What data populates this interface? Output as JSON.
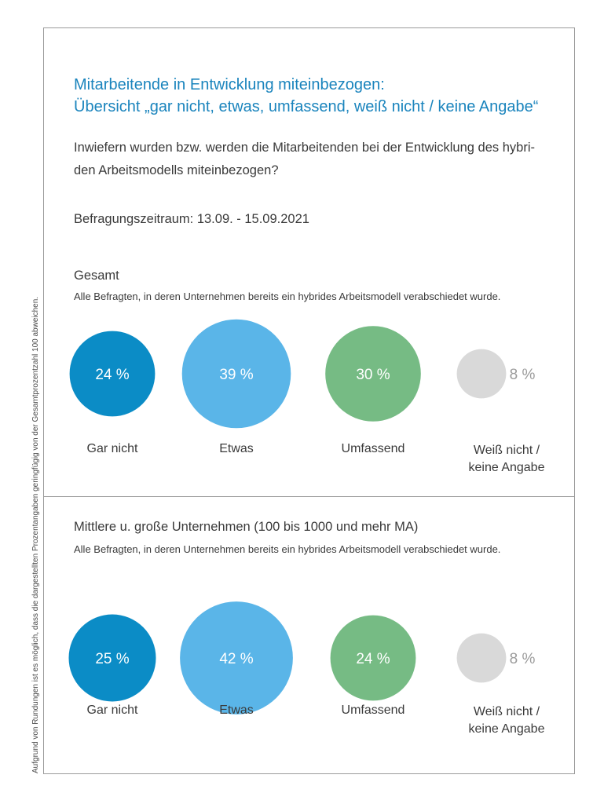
{
  "title_line1": "Mitarbeitende in Entwicklung miteinbezogen:",
  "title_line2": "Übersicht „gar nicht, etwas, umfassend, weiß nicht / keine Angabe“",
  "question_line1": "Inwiefern wurden bzw. werden die Mitarbeitenden bei der Entwicklung des hybri-",
  "question_line2": "den Arbeitsmodells miteinbezogen?",
  "period": "Befragungszeitraum: 13.09. - 15.09.2021",
  "side_note": "Aufgrund von Rundungen ist es möglich, dass die dargestellten Prozentangaben geringfügig von der Gesamtprozentzahl 100 abweichen.",
  "colors": {
    "title": "#1a84bd",
    "gar_nicht": "#0b8cc6",
    "etwas": "#5ab5e8",
    "umfassend": "#76bb84",
    "weiss_nicht": "#d9d9d9",
    "value_on_color": "#ffffff",
    "value_outside": "#9b9b9b"
  },
  "sections": [
    {
      "title": "Gesamt",
      "subtitle": "Alle Befragten, in deren Unternehmen bereits ein hybrides Arbeitsmodell verabschiedet wurde.",
      "labels": [
        "Gar nicht",
        "Etwas",
        "Umfassend",
        "Weiß nicht /",
        "keine Angabe"
      ]
    },
    {
      "title": "Mittlere u. große Unternehmen (100 bis 1000 und mehr MA)",
      "subtitle": "Alle Befragten, in deren Unternehmen bereits ein hybrides Arbeitsmodell verabschiedet wurde.",
      "labels": [
        "Gar nicht",
        "Etwas",
        "Umfassend",
        "Weiß nicht /",
        "keine Angabe"
      ]
    }
  ],
  "chart_data": [
    {
      "type": "bubble",
      "title": "Gesamt",
      "categories": [
        "Gar nicht",
        "Etwas",
        "Umfassend",
        "Weiß nicht / keine Angabe"
      ],
      "values": [
        24,
        39,
        30,
        8
      ],
      "value_labels": [
        "24 %",
        "39 %",
        "30 %",
        "8 %"
      ],
      "unit": "%"
    },
    {
      "type": "bubble",
      "title": "Mittlere u. große Unternehmen (100 bis 1000 und mehr MA)",
      "categories": [
        "Gar nicht",
        "Etwas",
        "Umfassend",
        "Weiß nicht / keine Angabe"
      ],
      "values": [
        25,
        42,
        24,
        8
      ],
      "value_labels": [
        "25 %",
        "42 %",
        "24 %",
        "8 %"
      ],
      "unit": "%"
    }
  ]
}
